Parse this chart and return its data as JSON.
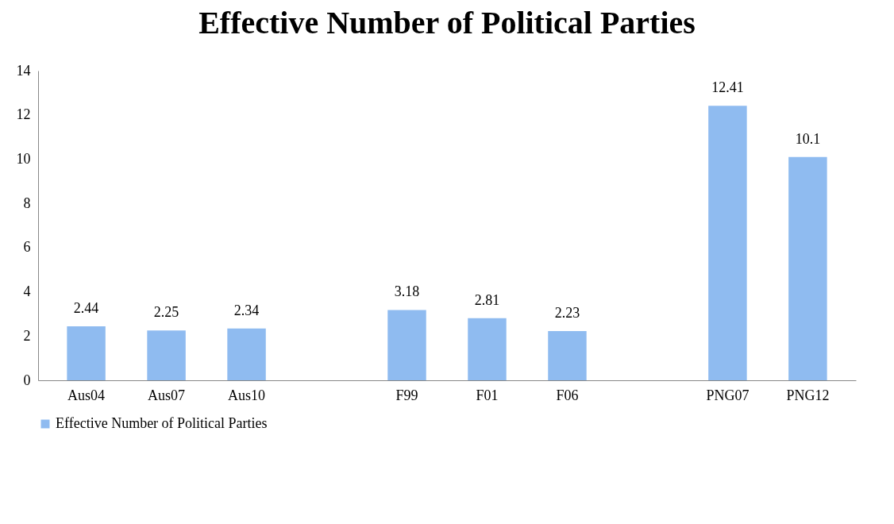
{
  "chart_data": {
    "type": "bar",
    "title": "Effective Number of Political Parties",
    "categories": [
      "Aus04",
      "Aus07",
      "Aus10",
      null,
      "F99",
      "F01",
      "F06",
      null,
      "PNG07",
      "PNG12"
    ],
    "series": [
      {
        "name": "Effective Number of Political Parties",
        "color": "#8fbbf0",
        "values": [
          2.44,
          2.25,
          2.34,
          null,
          3.18,
          2.81,
          2.23,
          null,
          12.41,
          10.1
        ]
      }
    ],
    "ylim": [
      0,
      14
    ],
    "yticks": [
      0,
      2,
      4,
      6,
      8,
      10,
      12,
      14
    ],
    "grid": false,
    "legend": "bottom",
    "data_labels": true
  }
}
